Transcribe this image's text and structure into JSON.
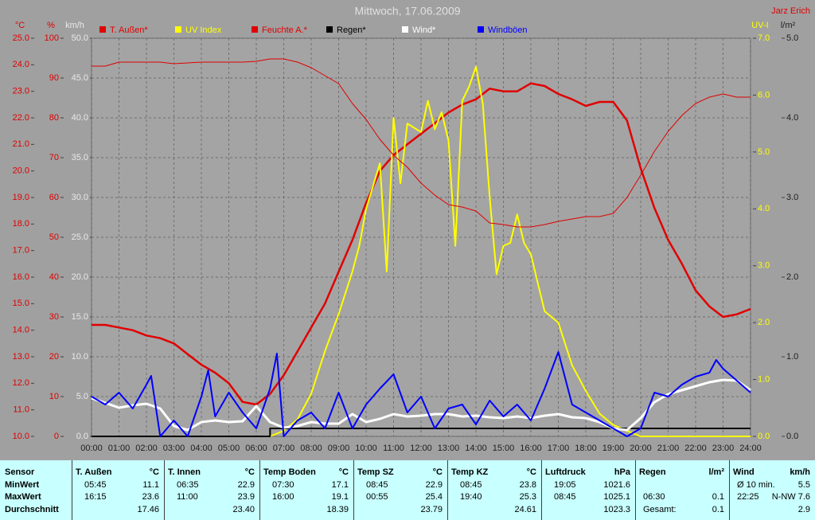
{
  "chart_data": {
    "type": "line",
    "title": "Mittwoch, 17.06.2009",
    "author": "Jarz Erich",
    "xlim": [
      0,
      24
    ],
    "xticks": [
      {
        "value": 0,
        "label": "00:00"
      },
      {
        "value": 1,
        "label": "01:00"
      },
      {
        "value": 2,
        "label": "02:00"
      },
      {
        "value": 3,
        "label": "03:00"
      },
      {
        "value": 4,
        "label": "04:00"
      },
      {
        "value": 5,
        "label": "05:00"
      },
      {
        "value": 6,
        "label": "06:00"
      },
      {
        "value": 7,
        "label": "07:00"
      },
      {
        "value": 8,
        "label": "08:00"
      },
      {
        "value": 9,
        "label": "09:00"
      },
      {
        "value": 10,
        "label": "10:00"
      },
      {
        "value": 11,
        "label": "11:00"
      },
      {
        "value": 12,
        "label": "12:00"
      },
      {
        "value": 13,
        "label": "13:00"
      },
      {
        "value": 14,
        "label": "14:00"
      },
      {
        "value": 15,
        "label": "15:00"
      },
      {
        "value": 16,
        "label": "16:00"
      },
      {
        "value": 17,
        "label": "17:00"
      },
      {
        "value": 18,
        "label": "18:00"
      },
      {
        "value": 19,
        "label": "19:00"
      },
      {
        "value": 20,
        "label": "20:00"
      },
      {
        "value": 21,
        "label": "21:00"
      },
      {
        "value": 22,
        "label": "22:00"
      },
      {
        "value": 23,
        "label": "23:00"
      },
      {
        "value": 24,
        "label": "24:00"
      }
    ],
    "axes": [
      {
        "unit": "°C",
        "color": "#e00000",
        "lim": [
          10,
          25
        ],
        "ticks": [
          {
            "value": 10,
            "label": "10.0"
          },
          {
            "value": 11,
            "label": "11.0"
          },
          {
            "value": 12,
            "label": "12.0"
          },
          {
            "value": 13,
            "label": "13.0"
          },
          {
            "value": 14,
            "label": "14.0"
          },
          {
            "value": 15,
            "label": "15.0"
          },
          {
            "value": 16,
            "label": "16.0"
          },
          {
            "value": 17,
            "label": "17.0"
          },
          {
            "value": 18,
            "label": "18.0"
          },
          {
            "value": 19,
            "label": "19.0"
          },
          {
            "value": 20,
            "label": "20.0"
          },
          {
            "value": 21,
            "label": "21.0"
          },
          {
            "value": 22,
            "label": "22.0"
          },
          {
            "value": 23,
            "label": "23.0"
          },
          {
            "value": 24,
            "label": "24.0"
          },
          {
            "value": 25,
            "label": "25.0"
          }
        ]
      },
      {
        "unit": "%",
        "color": "#e00000",
        "lim": [
          0,
          100
        ],
        "ticks": [
          0,
          10,
          20,
          30,
          40,
          50,
          60,
          70,
          80,
          90,
          100
        ]
      },
      {
        "unit": "km/h",
        "color": "#e8e8e8",
        "lim": [
          0,
          50
        ],
        "grid": true,
        "ticks": [
          {
            "value": 0,
            "label": "0.0"
          },
          {
            "value": 5,
            "label": "5.0"
          },
          {
            "value": 10,
            "label": "10.0"
          },
          {
            "value": 15,
            "label": "15.0"
          },
          {
            "value": 20,
            "label": "20.0"
          },
          {
            "value": 25,
            "label": "25.0"
          },
          {
            "value": 30,
            "label": "30.0"
          },
          {
            "value": 35,
            "label": "35.0"
          },
          {
            "value": 40,
            "label": "40.0"
          },
          {
            "value": 45,
            "label": "45.0"
          },
          {
            "value": 50,
            "label": "50.0"
          }
        ]
      },
      {
        "unit": "UV-I",
        "color": "#ffff00",
        "lim": [
          0,
          7
        ],
        "ticks": [
          {
            "value": 0,
            "label": "0.0"
          },
          {
            "value": 1,
            "label": "1.0"
          },
          {
            "value": 2,
            "label": "2.0"
          },
          {
            "value": 3,
            "label": "3.0"
          },
          {
            "value": 4,
            "label": "4.0"
          },
          {
            "value": 5,
            "label": "5.0"
          },
          {
            "value": 6,
            "label": "6.0"
          },
          {
            "value": 7,
            "label": "7.0"
          }
        ]
      },
      {
        "unit": "l/m²",
        "color": "#202020",
        "lim": [
          0,
          5
        ],
        "ticks": [
          {
            "value": 0,
            "label": "0.0"
          },
          {
            "value": 1,
            "label": "1.0"
          },
          {
            "value": 2,
            "label": "2.0"
          },
          {
            "value": 3,
            "label": "3.0"
          },
          {
            "value": 4,
            "label": "4.0"
          },
          {
            "value": 5,
            "label": "5.0"
          }
        ]
      }
    ],
    "x": [
      0,
      0.5,
      1,
      1.5,
      2,
      2.5,
      3,
      3.5,
      4,
      4.5,
      5,
      5.5,
      6,
      6.5,
      7,
      7.5,
      8,
      8.5,
      9,
      9.5,
      10,
      10.5,
      11,
      11.5,
      12,
      12.5,
      13,
      13.5,
      14,
      14.5,
      15,
      15.5,
      16,
      16.5,
      17,
      17.5,
      18,
      18.5,
      19,
      19.5,
      20,
      20.5,
      21,
      21.5,
      22,
      22.5,
      23,
      23.5,
      24
    ],
    "series": [
      {
        "name": "T. Außen*",
        "color": "#e00000",
        "axis": 0,
        "width": 2.5,
        "values": [
          14.2,
          14.2,
          14.1,
          14.0,
          13.8,
          13.7,
          13.5,
          13.1,
          12.7,
          12.4,
          12.0,
          11.3,
          11.2,
          11.6,
          12.3,
          13.2,
          14.1,
          15.0,
          16.2,
          17.4,
          18.8,
          20.0,
          20.6,
          21.0,
          21.4,
          21.8,
          22.2,
          22.5,
          22.7,
          23.1,
          23.0,
          23.0,
          23.3,
          23.2,
          22.9,
          22.7,
          22.45,
          22.6,
          22.6,
          21.9,
          20.1,
          18.6,
          17.4,
          16.5,
          15.5,
          14.9,
          14.5,
          14.6,
          14.8
        ]
      },
      {
        "name": "UV Index",
        "color": "#ffff00",
        "axis": 3,
        "width": 2,
        "x": [
          0,
          6.5,
          7,
          7.5,
          8,
          8.5,
          9,
          9.5,
          9.75,
          10,
          10.5,
          10.75,
          11,
          11.25,
          11.5,
          12,
          12.25,
          12.5,
          12.75,
          13,
          13.25,
          13.5,
          13.75,
          14,
          14.25,
          14.5,
          14.75,
          15,
          15.25,
          15.5,
          15.75,
          16,
          16.5,
          17,
          17.5,
          18,
          18.5,
          19,
          19.5,
          20,
          24
        ],
        "values": [
          0,
          0,
          0.1,
          0.3,
          0.75,
          1.5,
          2.15,
          2.9,
          3.35,
          4.0,
          4.8,
          2.9,
          5.6,
          4.45,
          5.5,
          5.35,
          5.9,
          5.4,
          5.7,
          5.2,
          3.35,
          5.9,
          6.15,
          6.5,
          5.85,
          4.2,
          2.85,
          3.35,
          3.4,
          3.9,
          3.4,
          3.2,
          2.2,
          2.0,
          1.25,
          0.8,
          0.4,
          0.2,
          0.1,
          0,
          0
        ]
      },
      {
        "name": "Feuchte A.*",
        "color": "#e00000",
        "axis": 1,
        "width": 1,
        "values": [
          93,
          93,
          94,
          94,
          94,
          94,
          93.6,
          93.8,
          94,
          94,
          94,
          94,
          94.2,
          94.8,
          94.8,
          94,
          92.6,
          90.6,
          88.6,
          83.6,
          79.6,
          74.6,
          70.6,
          67.6,
          63.6,
          60.6,
          58.2,
          57.6,
          56.6,
          53.6,
          53.2,
          52.6,
          52.6,
          53.2,
          54,
          54.6,
          55.2,
          55.2,
          56,
          60,
          65.6,
          71.6,
          76.6,
          80.6,
          83.6,
          85.2,
          86,
          85.2,
          85.2
        ]
      },
      {
        "name": "Regen*",
        "color": "#000000",
        "axis": 4,
        "width": 2,
        "x": [
          0,
          6.5,
          6.5,
          24
        ],
        "values": [
          0,
          0,
          0.1,
          0.1
        ]
      },
      {
        "name": "Wind*",
        "color": "#ffffff",
        "axis": 2,
        "width": 3,
        "values": [
          4.8,
          4.2,
          3.6,
          3.9,
          4.1,
          3.5,
          1.3,
          0.8,
          1.8,
          2.0,
          1.8,
          1.9,
          3.8,
          1.8,
          1.1,
          1.3,
          1.8,
          1.6,
          1.6,
          2.8,
          1.8,
          2.2,
          2.8,
          2.5,
          2.6,
          2.8,
          2.8,
          2.5,
          2.6,
          2.4,
          2.3,
          2.5,
          2.3,
          2.6,
          2.8,
          2.4,
          2.3,
          1.8,
          1.0,
          0.8,
          2.3,
          4.3,
          5.3,
          5.8,
          6.3,
          6.8,
          7.1,
          7.0,
          5.8
        ]
      },
      {
        "name": "Windböen",
        "color": "#0000ff",
        "axis": 2,
        "width": 2,
        "x": [
          0,
          0.5,
          1,
          1.5,
          2,
          2.17,
          2.5,
          3,
          3.5,
          4,
          4.25,
          4.5,
          5,
          5.5,
          6,
          6.5,
          6.75,
          7,
          7.5,
          8,
          8.5,
          9,
          9.5,
          10,
          10.5,
          11,
          11.5,
          12,
          12.5,
          13,
          13.5,
          14,
          14.5,
          15,
          15.5,
          16,
          16.5,
          17,
          17.5,
          18,
          18.5,
          19,
          19.5,
          20,
          20.5,
          21,
          21.5,
          22,
          22.5,
          22.75,
          23,
          23.5,
          24
        ],
        "values": [
          5.0,
          4.0,
          5.5,
          3.5,
          6.5,
          7.6,
          0,
          2.0,
          0,
          5.0,
          8.3,
          2.5,
          5.5,
          3.0,
          1.0,
          6.0,
          10.4,
          0,
          2.0,
          3.0,
          1.0,
          5.5,
          1.0,
          4.0,
          6.0,
          7.8,
          3.0,
          5.0,
          1.0,
          3.5,
          4.0,
          1.5,
          4.5,
          2.5,
          4.0,
          2.0,
          6.0,
          10.6,
          4.0,
          3.0,
          2.0,
          1.0,
          0,
          1.0,
          5.5,
          5.0,
          6.5,
          7.5,
          8.0,
          9.6,
          8.5,
          7.0,
          5.5
        ]
      }
    ]
  },
  "table": {
    "row_labels": [
      "Sensor",
      "MinWert",
      "MaxWert",
      "Durchschnitt"
    ],
    "groups": [
      {
        "name": "T. Außen",
        "unit": "°C",
        "rows": [
          [
            "05:45",
            "11.1"
          ],
          [
            "16:15",
            "23.6"
          ],
          [
            null,
            "17.46"
          ]
        ]
      },
      {
        "name": "T. Innen",
        "unit": "°C",
        "rows": [
          [
            "06:35",
            "22.9"
          ],
          [
            "11:00",
            "23.9"
          ],
          [
            null,
            "23.40"
          ]
        ]
      },
      {
        "name": "Temp Boden",
        "unit": "°C",
        "rows": [
          [
            "07:30",
            "17.1"
          ],
          [
            "16:00",
            "19.1"
          ],
          [
            null,
            "18.39"
          ]
        ]
      },
      {
        "name": "Temp SZ",
        "unit": "°C",
        "rows": [
          [
            "08:45",
            "22.9"
          ],
          [
            "00:55",
            "25.4"
          ],
          [
            null,
            "23.79"
          ]
        ]
      },
      {
        "name": "Temp KZ",
        "unit": "°C",
        "rows": [
          [
            "08:45",
            "23.8"
          ],
          [
            "19:40",
            "25.3"
          ],
          [
            null,
            "24.61"
          ]
        ]
      },
      {
        "name": "Luftdruck",
        "unit": "hPa",
        "rows": [
          [
            "19:05",
            "1021.6"
          ],
          [
            "08:45",
            "1025.1"
          ],
          [
            null,
            "1023.3"
          ]
        ]
      },
      {
        "name": "Regen",
        "unit": "l/m²",
        "rows": [
          [
            null,
            null
          ],
          [
            "06:30",
            "0.1"
          ],
          [
            "Gesamt:",
            "0.1"
          ]
        ]
      },
      {
        "name": "Wind",
        "unit": "km/h",
        "rows": [
          [
            "Ø 10 min.",
            "5.5"
          ],
          [
            "22:25",
            "N-NW 7.6"
          ],
          [
            null,
            "2.9"
          ]
        ]
      }
    ]
  }
}
